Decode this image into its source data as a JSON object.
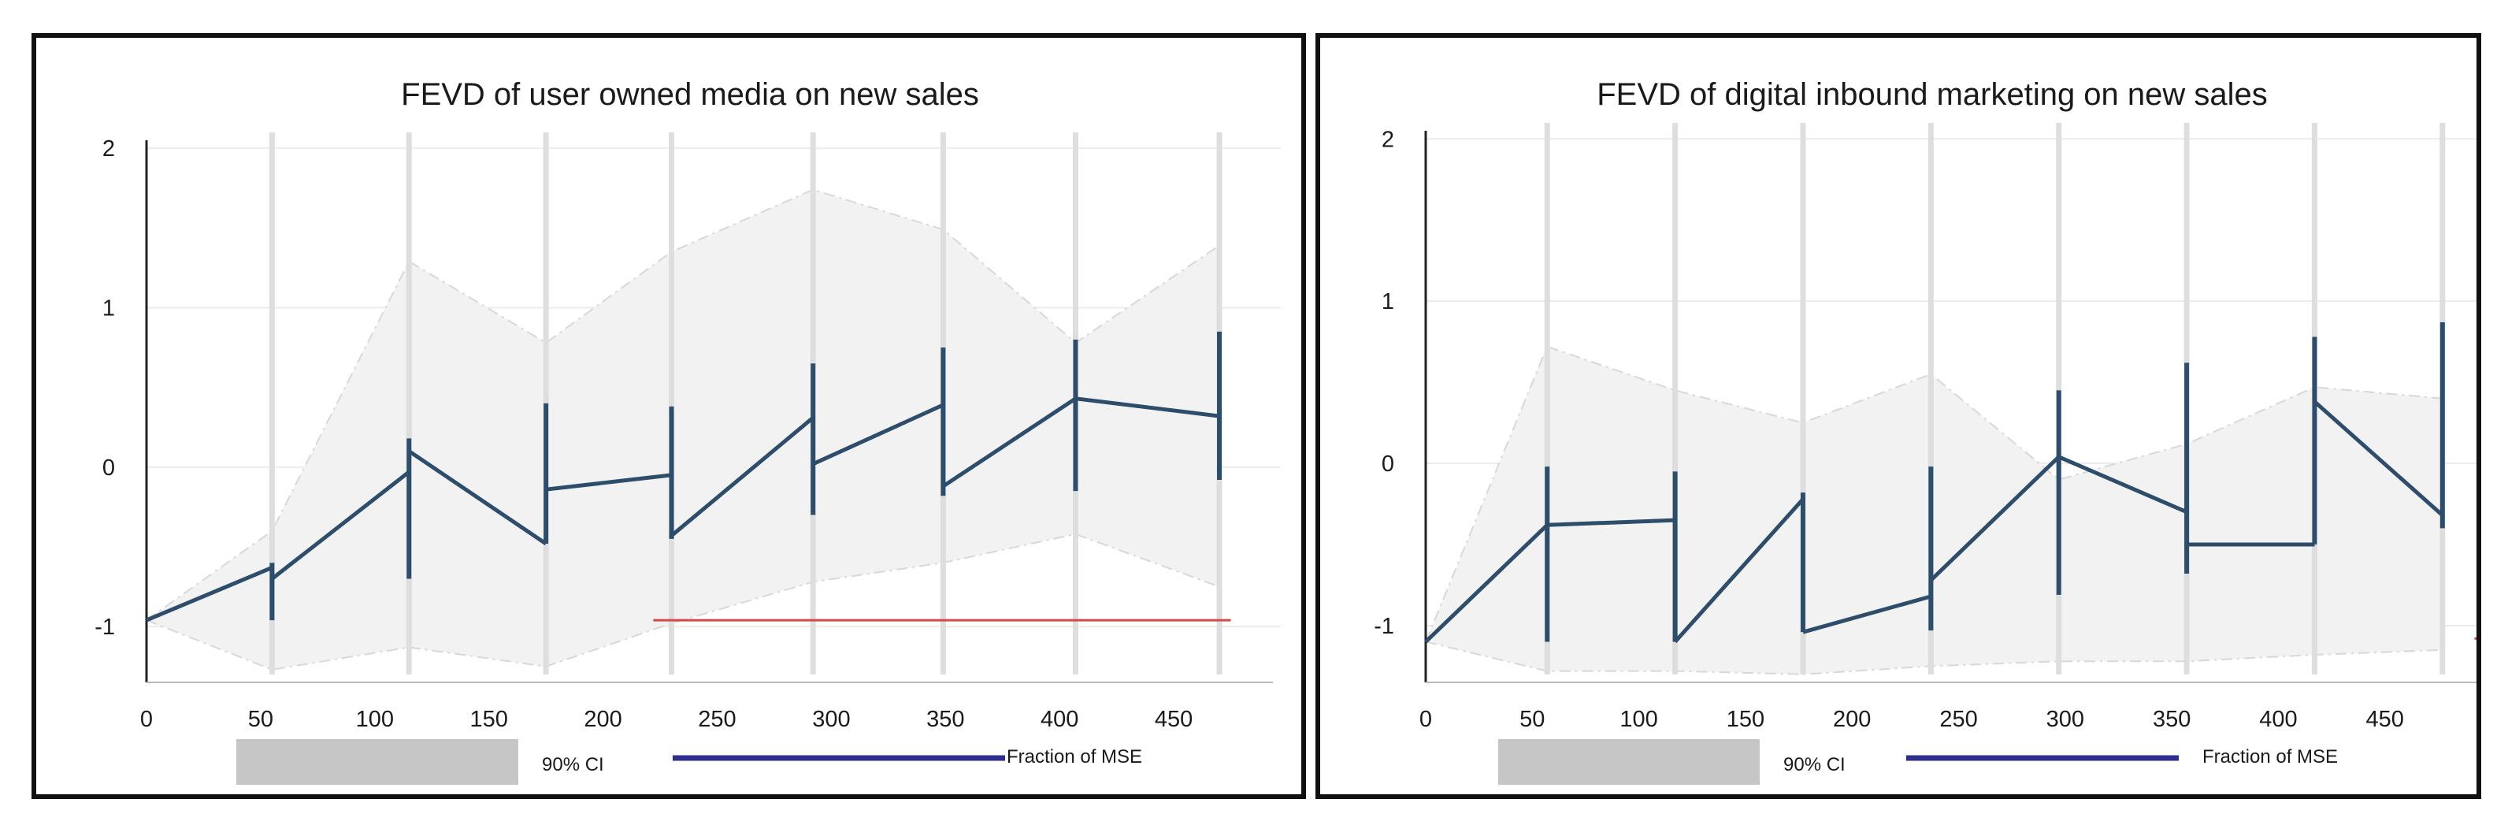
{
  "chart_data": [
    {
      "type": "line",
      "title": "FEVD of user owned media on new sales",
      "xlabel": "",
      "ylabel": "",
      "xlim": [
        0,
        490
      ],
      "ylim": [
        -1.35,
        2.05
      ],
      "xticks": [
        0,
        50,
        100,
        150,
        200,
        250,
        300,
        350,
        400,
        450
      ],
      "yticks": [
        -1,
        0,
        1,
        2
      ],
      "grid": true,
      "legend": [
        {
          "label": "90% CI",
          "color": "#c6c6c6"
        },
        {
          "label": "Fraction of MSE",
          "color": "#2e2e8e"
        }
      ],
      "series": [
        {
          "name": "Fraction of MSE",
          "segments": [
            [
              [
                0,
                -0.96
              ],
              [
                55,
                -0.63
              ]
            ],
            [
              [
                55,
                -0.7
              ],
              [
                115,
                -0.03
              ]
            ],
            [
              [
                115,
                0.1
              ],
              [
                175,
                -0.48
              ]
            ],
            [
              [
                175,
                -0.14
              ],
              [
                230,
                -0.05
              ]
            ],
            [
              [
                230,
                -0.43
              ],
              [
                292,
                0.31
              ]
            ],
            [
              [
                292,
                0.02
              ],
              [
                349,
                0.39
              ]
            ],
            [
              [
                349,
                -0.12
              ],
              [
                407,
                0.43
              ]
            ],
            [
              [
                407,
                0.43
              ],
              [
                470,
                0.32
              ]
            ]
          ],
          "error_bars": [
            {
              "x": 55,
              "low": -0.96,
              "high": -0.6
            },
            {
              "x": 115,
              "low": -0.7,
              "high": 0.18
            },
            {
              "x": 175,
              "low": -0.48,
              "high": 0.4
            },
            {
              "x": 230,
              "low": -0.45,
              "high": 0.38
            },
            {
              "x": 292,
              "low": -0.3,
              "high": 0.65
            },
            {
              "x": 349,
              "low": -0.18,
              "high": 0.75
            },
            {
              "x": 407,
              "low": -0.15,
              "high": 0.8
            },
            {
              "x": 470,
              "low": -0.08,
              "high": 0.85
            }
          ]
        }
      ],
      "ci_upper": [
        [
          0,
          -0.96
        ],
        [
          55,
          -0.4
        ],
        [
          115,
          1.29
        ],
        [
          175,
          0.78
        ],
        [
          230,
          1.35
        ],
        [
          292,
          1.74
        ],
        [
          349,
          1.49
        ],
        [
          407,
          0.78
        ],
        [
          470,
          1.39
        ]
      ],
      "ci_lower": [
        [
          0,
          -0.96
        ],
        [
          55,
          -1.27
        ],
        [
          115,
          -1.13
        ],
        [
          175,
          -1.25
        ],
        [
          230,
          -0.98
        ],
        [
          292,
          -0.72
        ],
        [
          349,
          -0.6
        ],
        [
          407,
          -0.42
        ],
        [
          470,
          -0.75
        ]
      ],
      "ci_marker_x": [
        55,
        115,
        175,
        230,
        292,
        349,
        407,
        470
      ],
      "reference_line": {
        "y": -0.96,
        "from_x": 222,
        "to_x": 475,
        "color": "#d04a4a"
      }
    },
    {
      "type": "line",
      "title": "FEVD of digital inbound marketing on new sales",
      "xlabel": "",
      "ylabel": "",
      "xlim": [
        0,
        490
      ],
      "ylim": [
        -1.35,
        2.05
      ],
      "xticks": [
        0,
        50,
        100,
        150,
        200,
        250,
        300,
        350,
        400,
        450
      ],
      "yticks": [
        -1,
        0,
        1,
        2
      ],
      "grid": true,
      "legend": [
        {
          "label": "90% CI",
          "color": "#c6c6c6"
        },
        {
          "label": "Fraction of MSE",
          "color": "#2e2e8e"
        }
      ],
      "series": [
        {
          "name": "Fraction of MSE",
          "segments": [
            [
              [
                0,
                -1.1
              ],
              [
                57,
                -0.38
              ]
            ],
            [
              [
                57,
                -0.38
              ],
              [
                117,
                -0.35
              ]
            ],
            [
              [
                117,
                -1.1
              ],
              [
                177,
                -0.22
              ]
            ],
            [
              [
                177,
                -1.04
              ],
              [
                237,
                -0.82
              ]
            ],
            [
              [
                237,
                -0.72
              ],
              [
                297,
                0.04
              ]
            ],
            [
              [
                297,
                0.04
              ],
              [
                357,
                -0.3
              ]
            ],
            [
              [
                357,
                -0.5
              ],
              [
                417,
                -0.5
              ]
            ],
            [
              [
                417,
                0.38
              ],
              [
                477,
                -0.32
              ]
            ]
          ],
          "error_bars": [
            {
              "x": 57,
              "low": -1.1,
              "high": -0.02
            },
            {
              "x": 117,
              "low": -1.1,
              "high": -0.05
            },
            {
              "x": 177,
              "low": -1.04,
              "high": -0.18
            },
            {
              "x": 237,
              "low": -1.03,
              "high": -0.02
            },
            {
              "x": 297,
              "low": -0.81,
              "high": 0.45
            },
            {
              "x": 357,
              "low": -0.68,
              "high": 0.62
            },
            {
              "x": 417,
              "low": -0.5,
              "high": 0.78
            },
            {
              "x": 477,
              "low": -0.4,
              "high": 0.87
            }
          ]
        }
      ],
      "ci_upper": [
        [
          0,
          -1.1
        ],
        [
          57,
          0.72
        ],
        [
          117,
          0.45
        ],
        [
          177,
          0.25
        ],
        [
          237,
          0.55
        ],
        [
          297,
          -0.1
        ],
        [
          357,
          0.12
        ],
        [
          417,
          0.47
        ],
        [
          477,
          0.4
        ]
      ],
      "ci_lower": [
        [
          0,
          -1.1
        ],
        [
          57,
          -1.28
        ],
        [
          117,
          -1.28
        ],
        [
          177,
          -1.3
        ],
        [
          237,
          -1.25
        ],
        [
          297,
          -1.22
        ],
        [
          357,
          -1.22
        ],
        [
          417,
          -1.18
        ],
        [
          477,
          -1.15
        ]
      ],
      "ci_marker_x": [
        57,
        117,
        177,
        237,
        297,
        357,
        417,
        477
      ],
      "reference_line": {
        "y": -1.08,
        "from_x": 492,
        "to_x": 500,
        "color": "#d04a4a"
      }
    }
  ]
}
